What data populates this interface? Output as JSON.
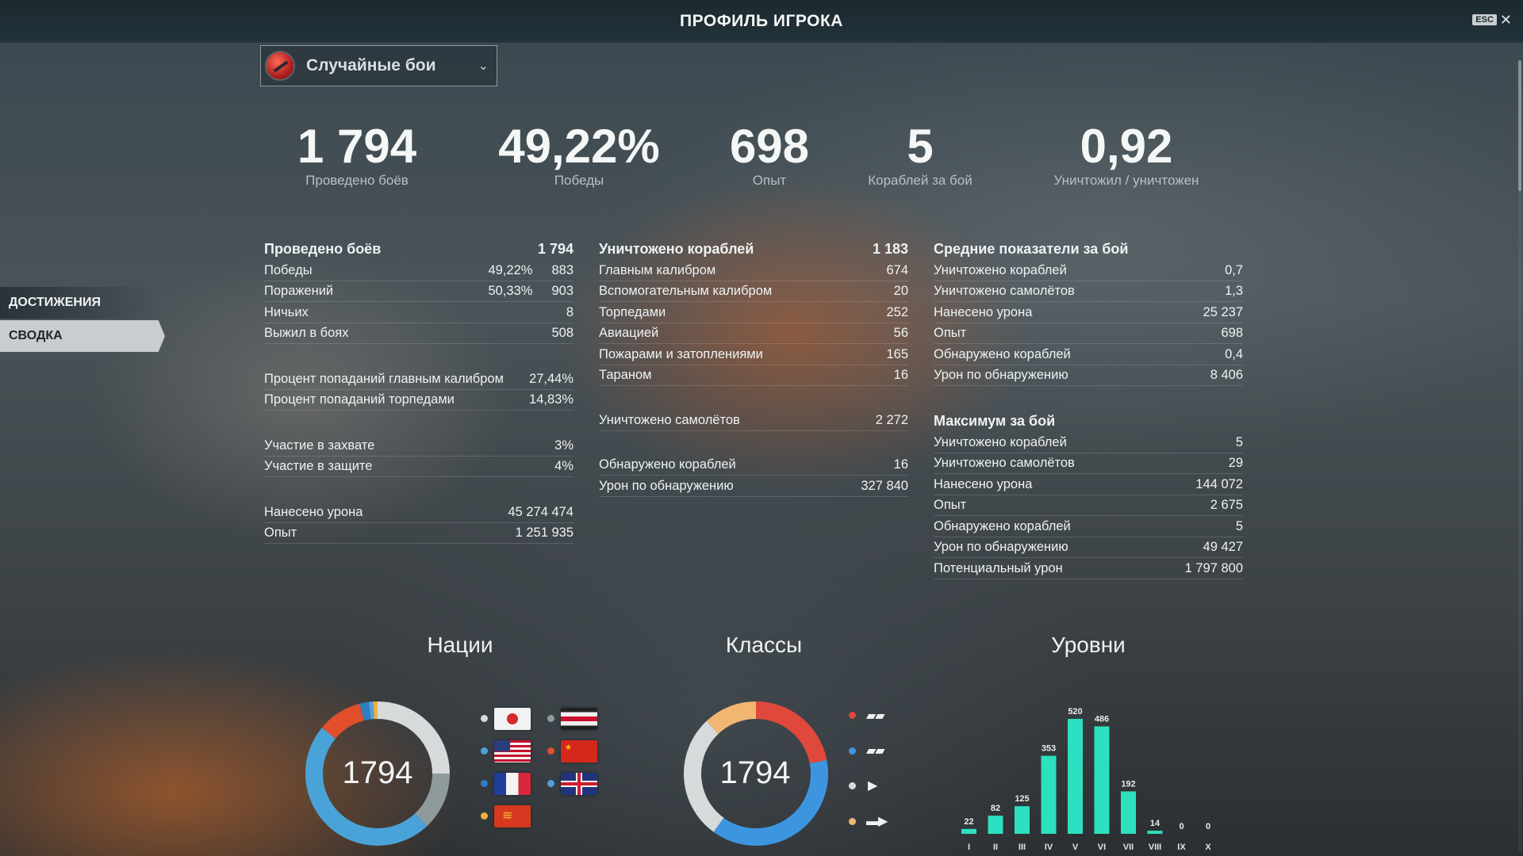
{
  "window": {
    "title": "ПРОФИЛЬ ИГРОКА",
    "esc_label": "ESC"
  },
  "mode_select": {
    "value": "Случайные бои"
  },
  "sidebar": {
    "items": [
      {
        "label": "ДОСТИЖЕНИЯ"
      },
      {
        "label": "СВОДКА"
      }
    ],
    "active": "СВОДКА"
  },
  "summary": [
    {
      "value": "1 794",
      "label": "Проведено боёв"
    },
    {
      "value": "49,22%",
      "label": "Победы"
    },
    {
      "value": "698",
      "label": "Опыт"
    },
    {
      "value": "5",
      "label": "Кораблей за бой"
    },
    {
      "value": "0,92",
      "label": "Уничтожил / уничтожен"
    }
  ],
  "col1": {
    "header": {
      "label": "Проведено боёв",
      "value": "1 794"
    },
    "rows": [
      {
        "label": "Победы",
        "pct": "49,22%",
        "value": "883"
      },
      {
        "label": "Поражений",
        "pct": "50,33%",
        "value": "903"
      },
      {
        "label": "Ничьих",
        "value": "8"
      },
      {
        "label": "Выжил в боях",
        "value": "508"
      }
    ],
    "accuracy": [
      {
        "label": "Процент попаданий главным калибром",
        "value": "27,44%"
      },
      {
        "label": "Процент попаданий торпедами",
        "value": "14,83%"
      }
    ],
    "base": [
      {
        "label": "Участие в захвате",
        "value": "3%"
      },
      {
        "label": "Участие в защите",
        "value": "4%"
      }
    ],
    "totals": [
      {
        "label": "Нанесено урона",
        "value": "45 274 474"
      },
      {
        "label": "Опыт",
        "value": "1 251 935"
      }
    ]
  },
  "col2": {
    "header": {
      "label": "Уничтожено кораблей",
      "value": "1 183"
    },
    "rows": [
      {
        "label": "Главным калибром",
        "value": "674"
      },
      {
        "label": "Вспомогательным калибром",
        "value": "20"
      },
      {
        "label": "Торпедами",
        "value": "252"
      },
      {
        "label": "Авиацией",
        "value": "56"
      },
      {
        "label": "Пожарами и затоплениями",
        "value": "165"
      },
      {
        "label": "Тараном",
        "value": "16"
      }
    ],
    "planes": {
      "label": "Уничтожено самолётов",
      "value": "2 272"
    },
    "spotting": [
      {
        "label": "Обнаружено кораблей",
        "value": "16"
      },
      {
        "label": "Урон по обнаружению",
        "value": "327 840"
      }
    ]
  },
  "col3": {
    "avg_header": "Средние показатели за бой",
    "avg": [
      {
        "label": "Уничтожено кораблей",
        "value": "0,7"
      },
      {
        "label": "Уничтожено самолётов",
        "value": "1,3"
      },
      {
        "label": "Нанесено урона",
        "value": "25 237"
      },
      {
        "label": "Опыт",
        "value": "698"
      },
      {
        "label": "Обнаружено кораблей",
        "value": "0,4"
      },
      {
        "label": "Урон по обнаружению",
        "value": "8 406"
      }
    ],
    "max_header": "Максимум за бой",
    "max": [
      {
        "label": "Уничтожено кораблей",
        "value": "5"
      },
      {
        "label": "Уничтожено самолётов",
        "value": "29"
      },
      {
        "label": "Нанесено урона",
        "value": "144 072"
      },
      {
        "label": "Опыт",
        "value": "2 675"
      },
      {
        "label": "Обнаружено кораблей",
        "value": "5"
      },
      {
        "label": "Урон по обнаружению",
        "value": "49 427"
      },
      {
        "label": "Потенциальный урон",
        "value": "1 797 800"
      }
    ]
  },
  "charts": {
    "nations": {
      "title": "Нации",
      "total": "1794",
      "segments": [
        {
          "nation": "japan",
          "fraction": 0.25,
          "color": "#d6dadb"
        },
        {
          "nation": "germany",
          "fraction": 0.13,
          "color": "#8f9a9d"
        },
        {
          "nation": "usa",
          "fraction": 0.48,
          "color": "#4aa3d8"
        },
        {
          "nation": "ussr",
          "fraction": 0.1,
          "color": "#e1502b"
        },
        {
          "nation": "france",
          "fraction": 0.02,
          "color": "#2f7fc0"
        },
        {
          "nation": "uk",
          "fraction": 0.01,
          "color": "#4fa0e0"
        },
        {
          "nation": "pan-asia",
          "fraction": 0.01,
          "color": "#f0b040"
        }
      ],
      "legend": [
        {
          "flag": "japan-flag",
          "dot": "#d6dadb"
        },
        {
          "flag": "germany-flag",
          "dot": "#8f9a9d"
        },
        {
          "flag": "usa-flag",
          "dot": "#4aa3d8"
        },
        {
          "flag": "ussr-flag",
          "dot": "#e1502b"
        },
        {
          "flag": "france-flag",
          "dot": "#2f7fc0"
        },
        {
          "flag": "uk-flag",
          "dot": "#4fa0e0"
        },
        {
          "flag": "pan-asia-flag",
          "dot": "#f0b040"
        }
      ]
    },
    "classes": {
      "title": "Классы",
      "total": "1794",
      "segments": [
        {
          "class": "battleship",
          "fraction": 0.22,
          "color": "#e0483c"
        },
        {
          "class": "cruiser",
          "fraction": 0.38,
          "color": "#3d95e0"
        },
        {
          "class": "destroyer",
          "fraction": 0.28,
          "color": "#d6dadb"
        },
        {
          "class": "carrier",
          "fraction": 0.12,
          "color": "#f2b673"
        }
      ],
      "legend": [
        {
          "icon": "battleship-icon",
          "glyph": "▰▰",
          "dot": "#e0483c"
        },
        {
          "icon": "cruiser-icon",
          "glyph": "▰▰",
          "dot": "#3d95e0"
        },
        {
          "icon": "destroyer-icon",
          "glyph": "▶",
          "dot": "#d6dadb"
        },
        {
          "icon": "carrier-icon",
          "glyph": "▬▶",
          "dot": "#f2b673"
        }
      ]
    }
  },
  "chart_data": {
    "type": "bar",
    "title": "Уровни",
    "categories": [
      "I",
      "II",
      "III",
      "IV",
      "V",
      "VI",
      "VII",
      "VIII",
      "IX",
      "X"
    ],
    "values": [
      22,
      82,
      125,
      353,
      520,
      486,
      192,
      14,
      0,
      0
    ],
    "color": "#2de0c0",
    "ylim": [
      0,
      520
    ]
  }
}
